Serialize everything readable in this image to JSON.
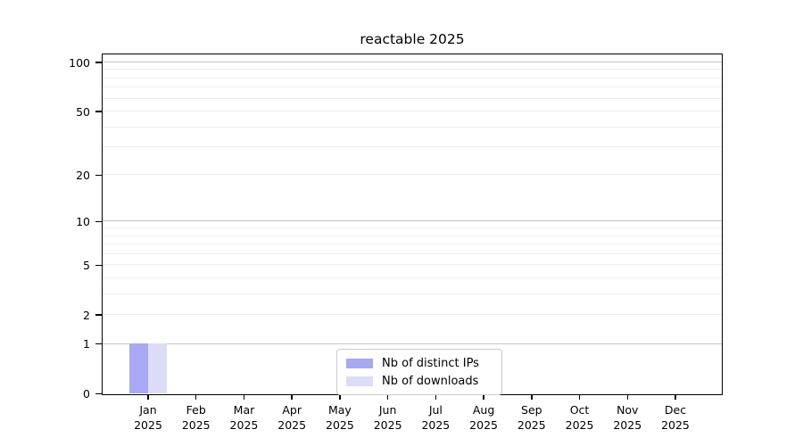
{
  "chart_data": {
    "type": "bar",
    "title": "reactable 2025",
    "categories": [
      "Jan 2025",
      "Feb 2025",
      "Mar 2025",
      "Apr 2025",
      "May 2025",
      "Jun 2025",
      "Jul 2025",
      "Aug 2025",
      "Sep 2025",
      "Oct 2025",
      "Nov 2025",
      "Dec 2025"
    ],
    "series": [
      {
        "name": "Nb of distinct IPs",
        "color": "#a8a8f4",
        "values": [
          1,
          0,
          0,
          0,
          0,
          0,
          0,
          0,
          0,
          0,
          0,
          0
        ]
      },
      {
        "name": "Nb of downloads",
        "color": "#dcdcf9",
        "values": [
          1,
          0,
          0,
          0,
          0,
          0,
          0,
          0,
          0,
          0,
          0,
          0
        ]
      }
    ],
    "xlabel": "",
    "ylabel": "",
    "yscale": "log10(value+1)",
    "ylim": [
      0,
      100
    ],
    "y_tick_labels": [
      0,
      1,
      2,
      5,
      10,
      20,
      50,
      100
    ],
    "grid": {
      "on": true,
      "strong_lines": [
        1,
        10,
        100
      ],
      "weak_lines": [
        2,
        3,
        4,
        5,
        6,
        7,
        8,
        9,
        20,
        30,
        40,
        50,
        60,
        70,
        80,
        90
      ],
      "strong_color": "#c6c6c6",
      "weak_color": "#eeeeee"
    },
    "legend": {
      "position": "lower center",
      "entries": [
        "Nb of distinct IPs",
        "Nb of downloads"
      ]
    }
  }
}
